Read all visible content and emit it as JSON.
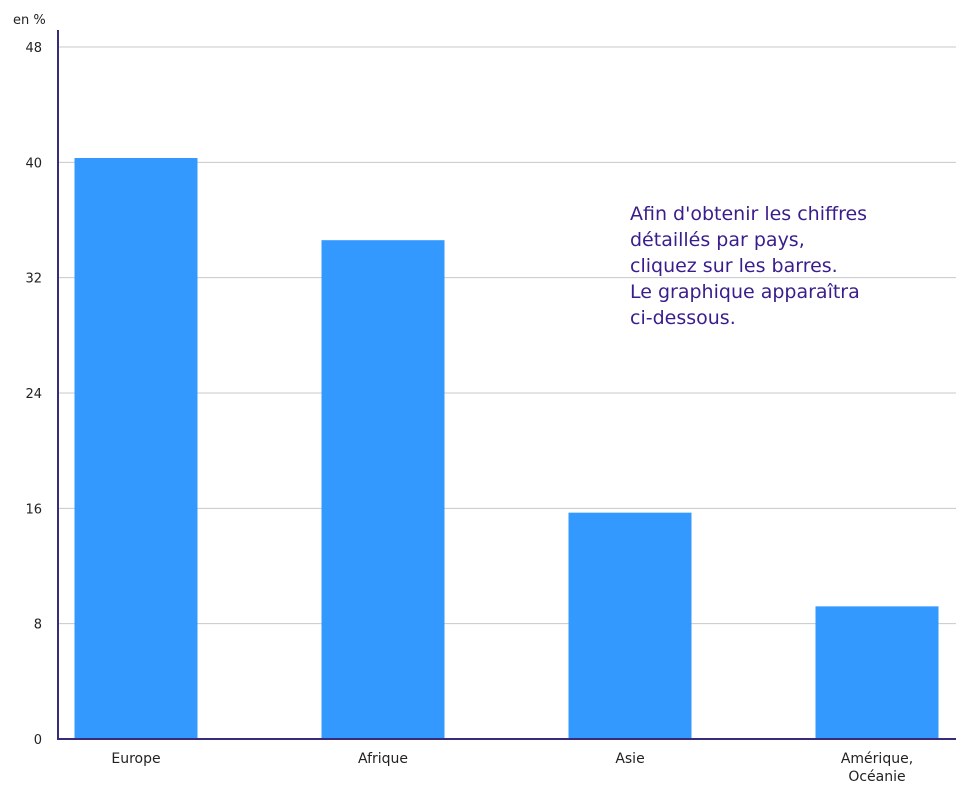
{
  "chart_data": {
    "type": "bar",
    "unit_label": "en %",
    "categories": [
      "Europe",
      "Afrique",
      "Asie",
      "Amérique, Océanie"
    ],
    "category_lines": [
      [
        "Europe"
      ],
      [
        "Afrique"
      ],
      [
        "Asie"
      ],
      [
        "Amérique,",
        "Océanie"
      ]
    ],
    "values": [
      40.3,
      34.6,
      15.7,
      9.2
    ],
    "ylim": [
      0,
      48
    ],
    "yticks": [
      0,
      8,
      16,
      24,
      32,
      40,
      48
    ],
    "grid": true,
    "colors": {
      "bar": "#3399ff",
      "axis": "#3a2a7a",
      "annotation": "#3a1d8c"
    }
  },
  "annotation": {
    "lines": [
      "Afin d'obtenir les chiffres",
      "détaillés par pays,",
      "cliquez sur les barres.",
      "Le graphique apparaîtra",
      "ci-dessous."
    ]
  }
}
